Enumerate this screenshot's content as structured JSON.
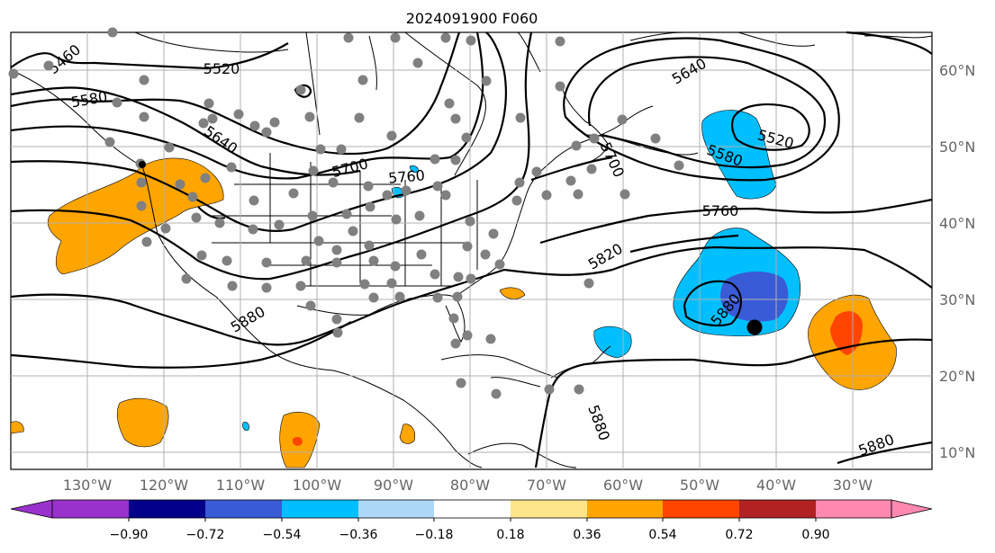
{
  "title": "2024091900 F060",
  "lat_labels": [
    "60°N",
    "50°N",
    "40°N",
    "30°N",
    "20°N",
    "10°N"
  ],
  "lon_labels": [
    "130°W",
    "120°W",
    "110°W",
    "100°W",
    "90°W",
    "80°W",
    "70°W",
    "60°W",
    "50°W",
    "40°W",
    "30°W"
  ],
  "contour_labels": [
    "5460",
    "5580",
    "5520",
    "5640",
    "5700",
    "5760",
    "5640",
    "5520",
    "5580",
    "5700",
    "5760",
    "5820",
    "5880",
    "5880",
    "5880",
    "5880"
  ],
  "colorbar": {
    "ticks": [
      "−0.90",
      "−0.72",
      "−0.54",
      "−0.36",
      "−0.18",
      "0.18",
      "0.36",
      "0.54",
      "0.72",
      "0.90"
    ],
    "colors": [
      "#9932cc",
      "#00008b",
      "#3a5bd6",
      "#00bfff",
      "#add8f8",
      "#ffffff",
      "#fde68a",
      "#ffa500",
      "#ff4500",
      "#b22222",
      "#ff88b0"
    ]
  },
  "colors": {
    "gridline": "#b0b0b0",
    "contour": "#000000",
    "station_dot": "#808080",
    "marker": "#000000"
  }
}
